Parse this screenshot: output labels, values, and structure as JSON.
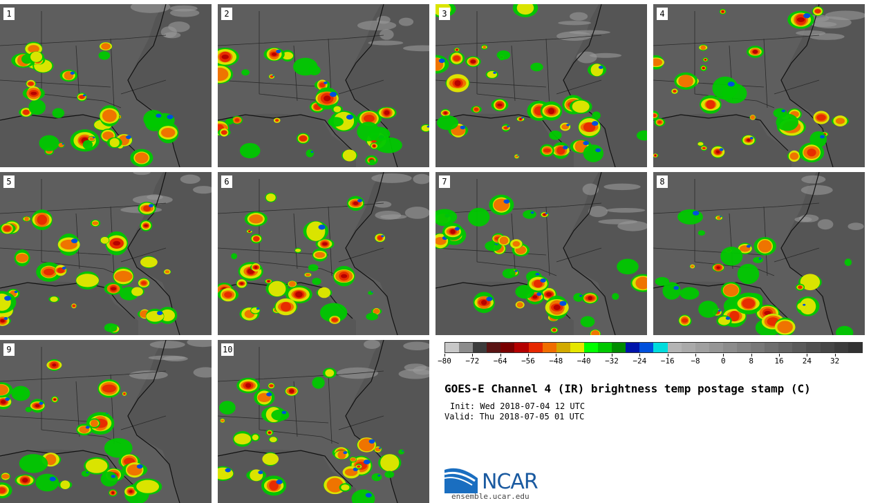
{
  "panels": [
    {
      "label": "1"
    },
    {
      "label": "2"
    },
    {
      "label": "3"
    },
    {
      "label": "4"
    },
    {
      "label": "5"
    },
    {
      "label": "6"
    },
    {
      "label": "7"
    },
    {
      "label": "8"
    },
    {
      "label": "9"
    },
    {
      "label": "10"
    }
  ],
  "colorbar": {
    "colors": [
      "#c8c8c8",
      "#8c8c8c",
      "#3c3c3c",
      "#5a1414",
      "#7a0000",
      "#b40000",
      "#e62800",
      "#f06e00",
      "#d2aa00",
      "#e6e600",
      "#00ff00",
      "#00c800",
      "#008c00",
      "#0014aa",
      "#0050dc",
      "#00dcdc",
      "#b4b4b4",
      "#aaaaaa",
      "#a0a0a0",
      "#969696",
      "#8c8c8c",
      "#828282",
      "#787878",
      "#6e6e6e",
      "#646464",
      "#5a5a5a",
      "#505050",
      "#464646",
      "#3c3c3c",
      "#323232"
    ],
    "tick_labels": [
      "−80",
      "−72",
      "−64",
      "−56",
      "−48",
      "−40",
      "−32",
      "−24",
      "−16",
      "−8",
      "0",
      "8",
      "16",
      "24",
      "32"
    ],
    "min": -80,
    "max": 40
  },
  "title": "GOES-E Channel 4 (IR) brightness temp postage stamp (C)",
  "init": "Init: Wed 2018-07-04 12 UTC",
  "valid": "Valid: Thu 2018-07-05 01 UTC",
  "logo": {
    "name": "NCAR",
    "url": "ensemble.ucar.edu",
    "color": "#1a5aa0"
  }
}
